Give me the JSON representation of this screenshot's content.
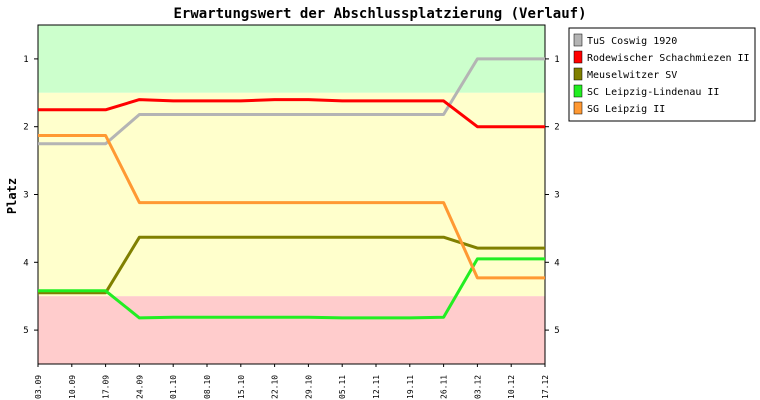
{
  "chart_data": {
    "type": "line",
    "title": "Erwartungswert der Abschlussplatzierung (Verlauf)",
    "ylabel": "Platz",
    "xlabel": "",
    "categories": [
      "03.09",
      "10.09",
      "17.09",
      "24.09",
      "01.10",
      "08.10",
      "15.10",
      "22.10",
      "29.10",
      "05.11",
      "12.11",
      "19.11",
      "26.11",
      "03.12",
      "10.12",
      "17.12"
    ],
    "ylim": [
      0.5,
      5.5
    ],
    "y_inverted": true,
    "y_ticks": [
      "1",
      "2",
      "3",
      "4",
      "5"
    ],
    "bands": [
      {
        "from": 0.5,
        "to": 1.5,
        "color": "#ccffcc"
      },
      {
        "from": 1.5,
        "to": 4.5,
        "color": "#ffffcc"
      },
      {
        "from": 4.5,
        "to": 5.5,
        "color": "#ffcccc"
      }
    ],
    "legend_position": "top-right",
    "series": [
      {
        "name": "TuS Coswig 1920",
        "color": "#b4b4b4",
        "values": [
          2.25,
          2.25,
          2.25,
          1.82,
          1.82,
          1.82,
          1.82,
          1.82,
          1.82,
          1.82,
          1.82,
          1.82,
          1.82,
          1.0,
          1.0,
          1.0
        ]
      },
      {
        "name": "Rodewischer Schachmiezen II",
        "color": "#ff0000",
        "values": [
          1.75,
          1.75,
          1.75,
          1.6,
          1.62,
          1.62,
          1.62,
          1.6,
          1.6,
          1.62,
          1.62,
          1.62,
          1.62,
          2.0,
          2.0,
          2.0
        ]
      },
      {
        "name": "Meuselwitzer SV",
        "color": "#808000",
        "values": [
          4.45,
          4.45,
          4.45,
          3.63,
          3.63,
          3.63,
          3.63,
          3.63,
          3.63,
          3.63,
          3.63,
          3.63,
          3.63,
          3.79,
          3.79,
          3.79
        ]
      },
      {
        "name": "SC Leipzig-Lindenau II",
        "color": "#22ee22",
        "values": [
          4.42,
          4.42,
          4.42,
          4.82,
          4.81,
          4.81,
          4.81,
          4.81,
          4.81,
          4.82,
          4.82,
          4.82,
          4.81,
          3.95,
          3.95,
          3.95
        ]
      },
      {
        "name": "SG Leipzig II",
        "color": "#ff9933",
        "values": [
          2.13,
          2.13,
          2.13,
          3.12,
          3.12,
          3.12,
          3.12,
          3.12,
          3.12,
          3.12,
          3.12,
          3.12,
          3.12,
          4.23,
          4.23,
          4.23
        ]
      }
    ]
  }
}
